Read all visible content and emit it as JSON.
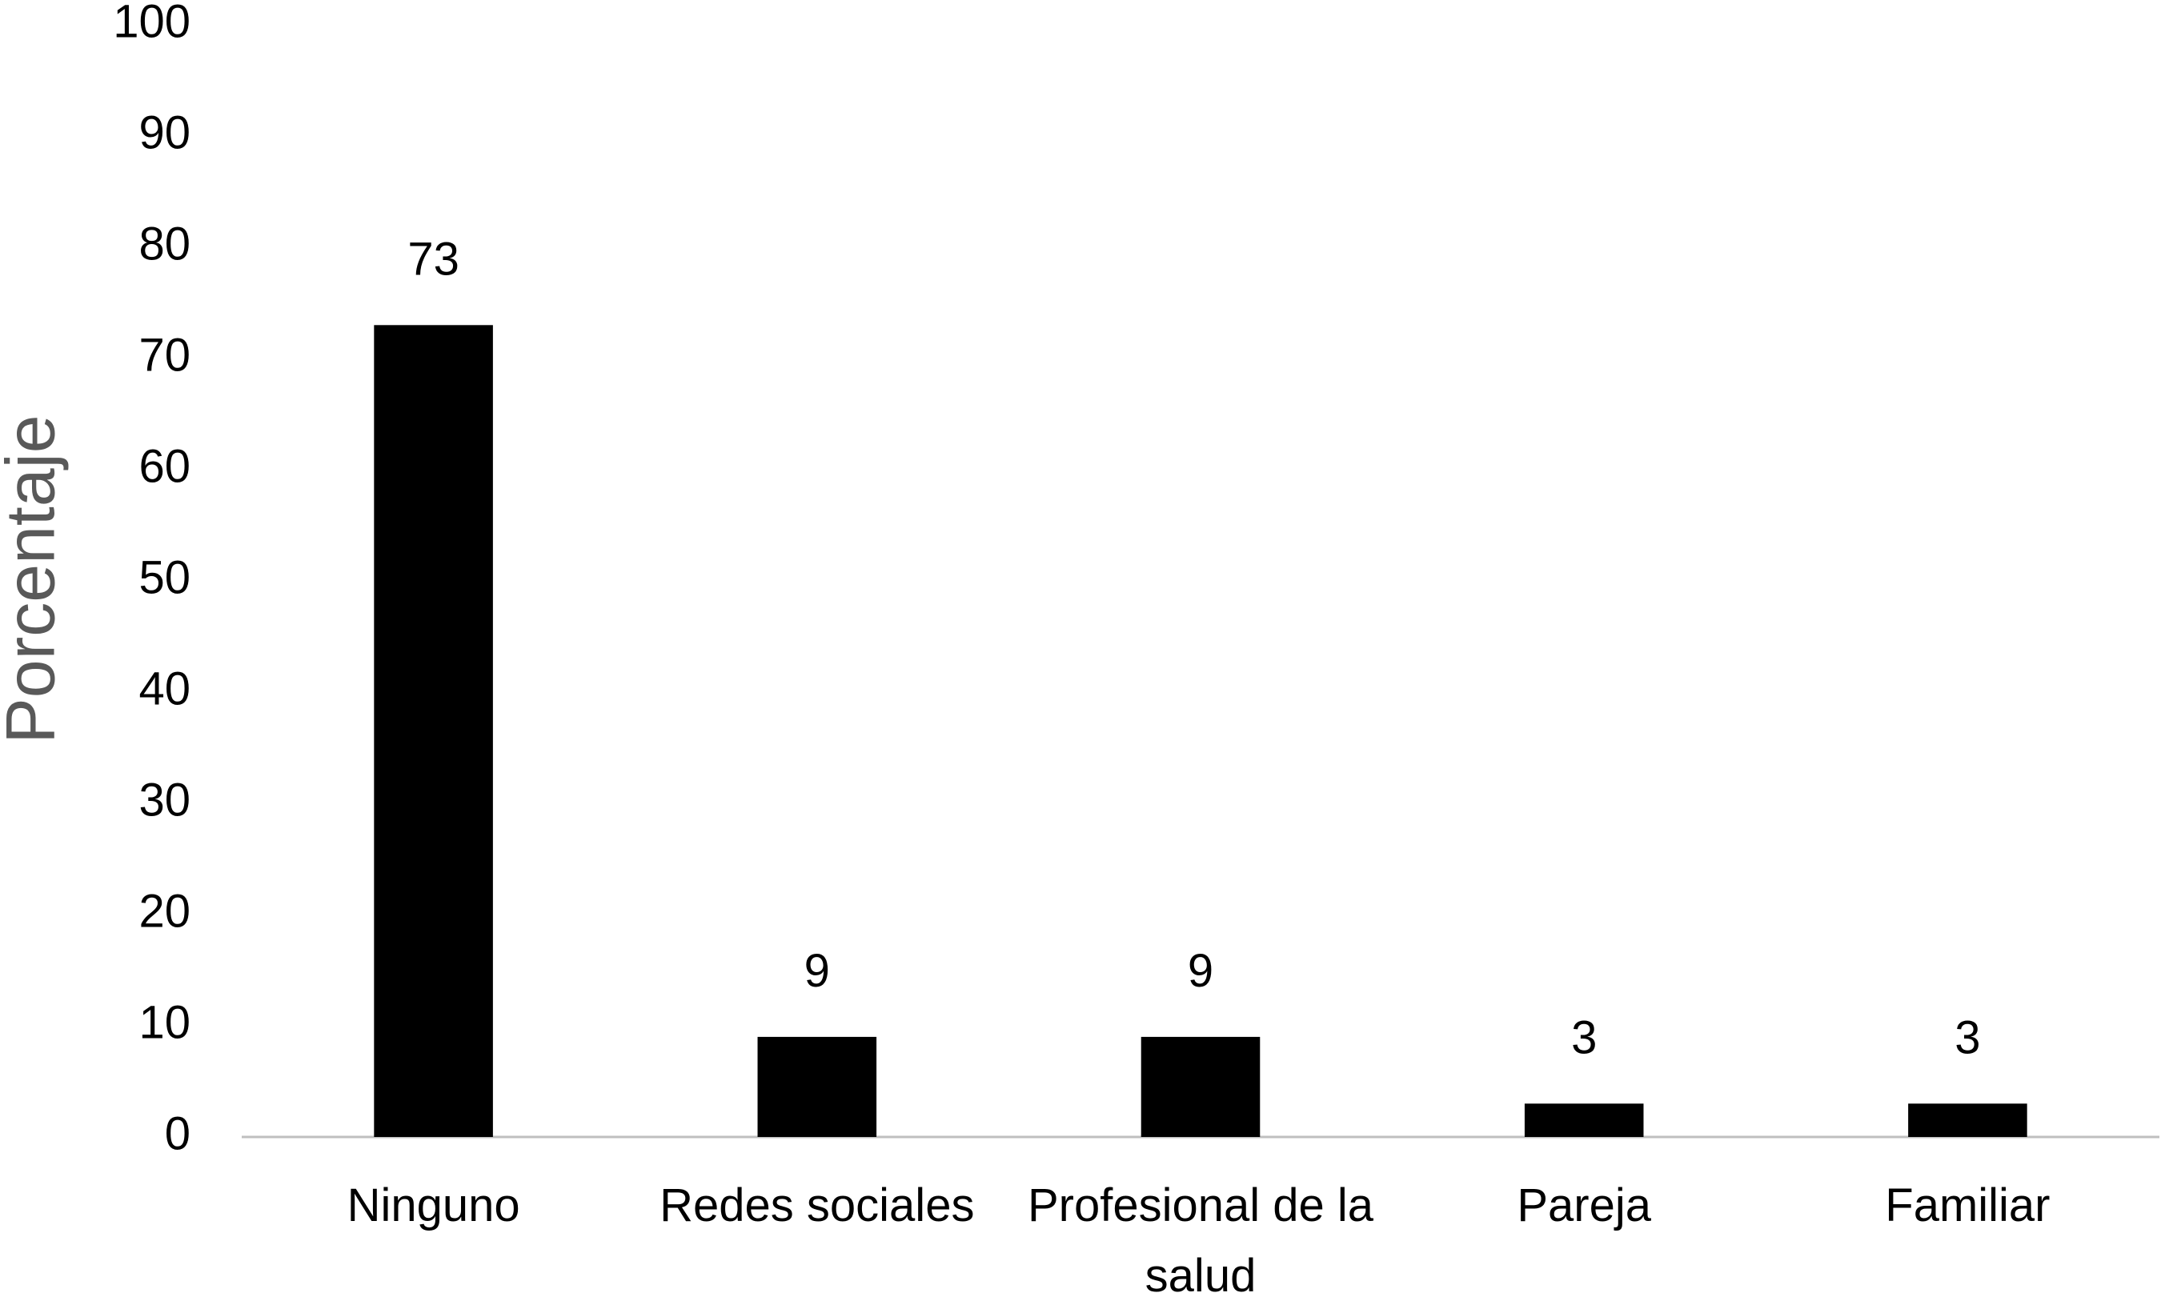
{
  "chart_data": {
    "type": "bar",
    "y_label": "Porcentaje",
    "categories": [
      "Ninguno",
      "Redes sociales",
      "Profesional de la salud",
      "Pareja",
      "Familiar"
    ],
    "values": [
      73,
      9,
      9,
      3,
      3
    ],
    "color": "#000000",
    "ylim": [
      0,
      100
    ],
    "yticks": [
      0,
      10,
      20,
      30,
      40,
      50,
      60,
      70,
      80,
      90,
      100
    ],
    "grid": false
  }
}
